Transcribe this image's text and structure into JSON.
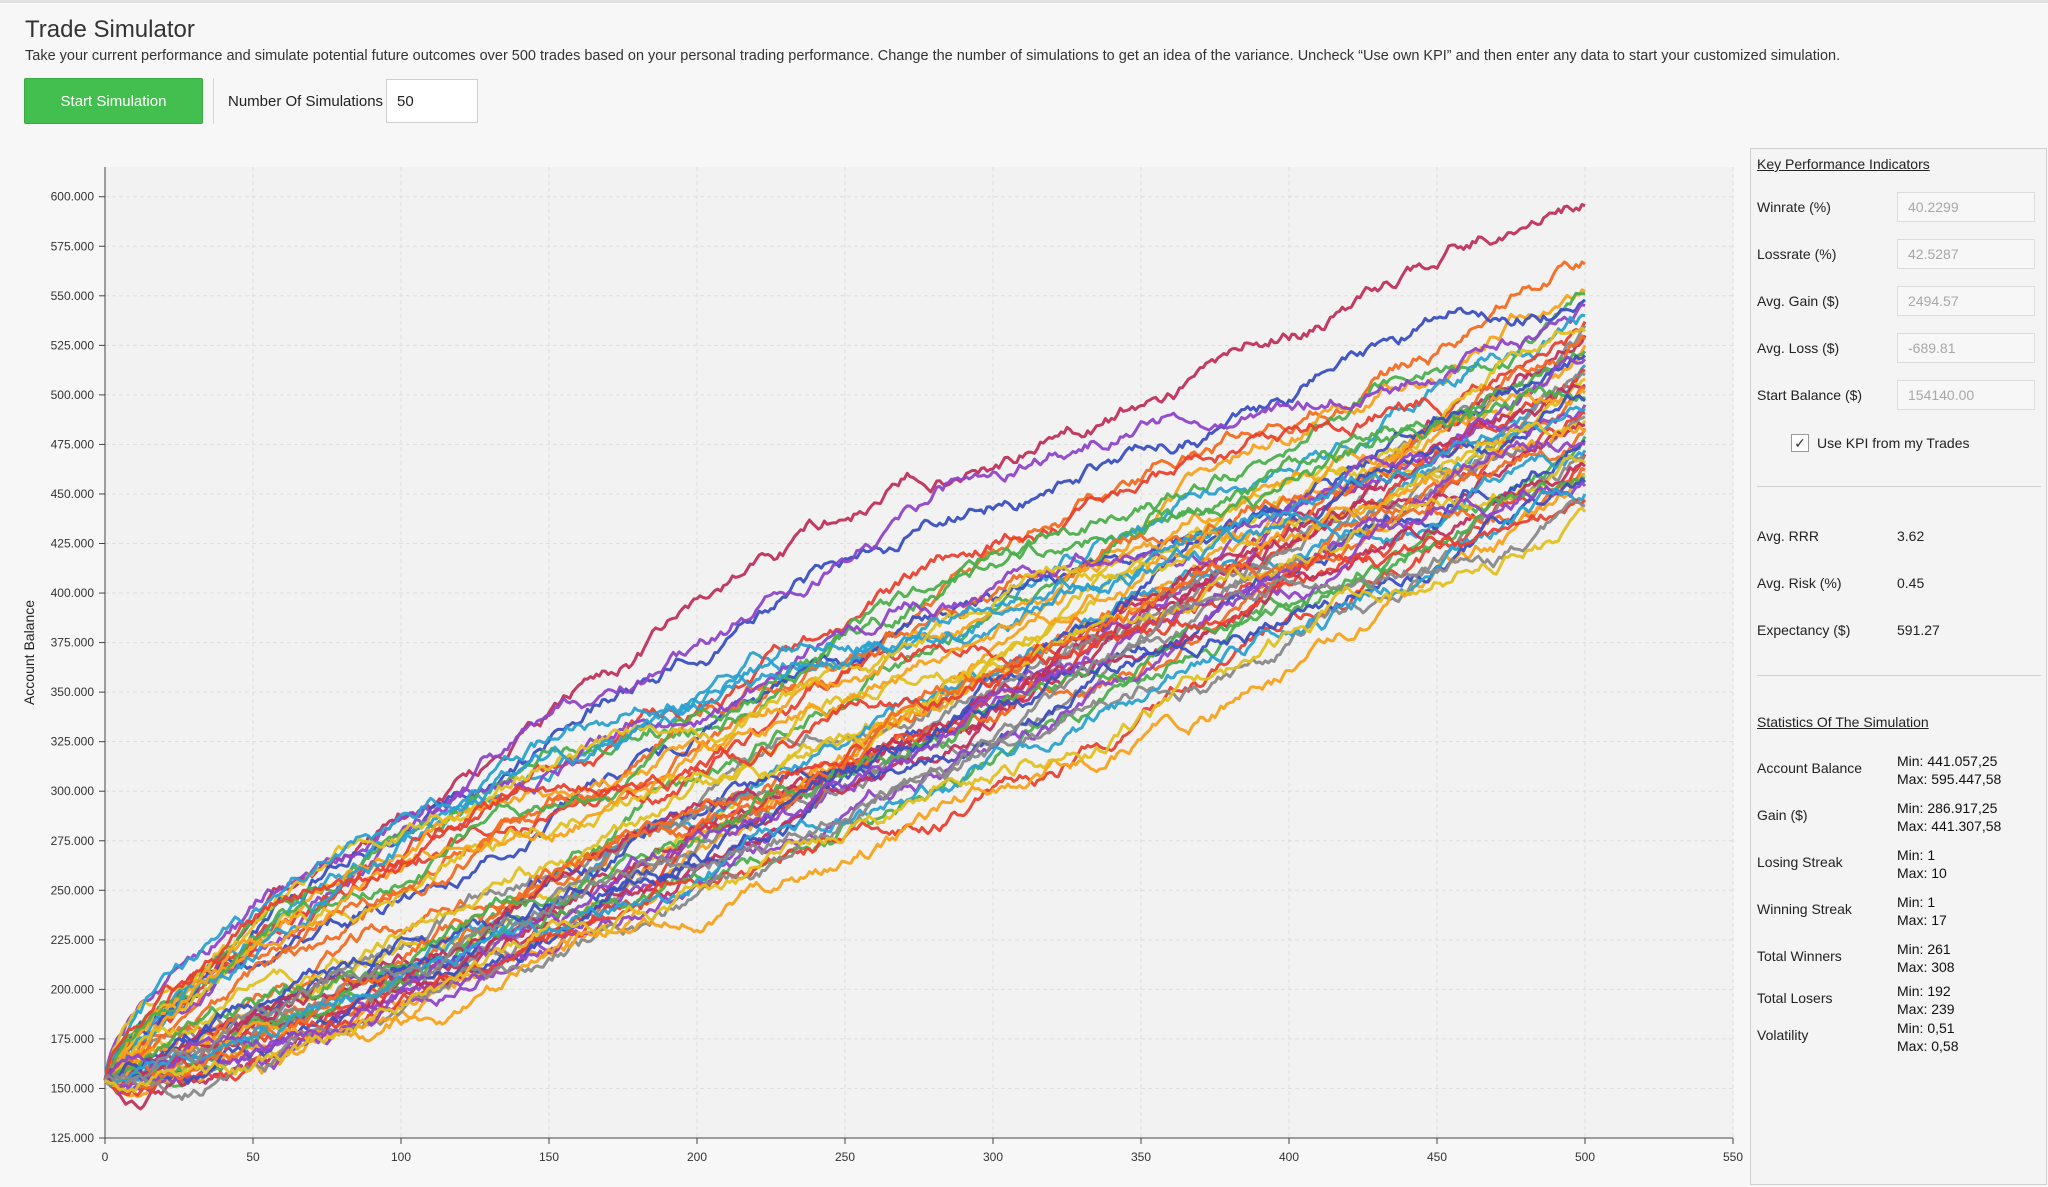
{
  "header": {
    "title": "Trade Simulator",
    "description": "Take your current performance and simulate potential future outcomes over 500 trades based on your personal trading performance. Change the number of simulations to get an idea of the variance. Uncheck “Use own KPI” and then enter any data to start your customized simulation."
  },
  "controls": {
    "start_button": "Start Simulation",
    "num_sim_label": "Number Of Simulations",
    "num_sim_value": "50"
  },
  "kpi": {
    "heading": "Key Performance Indicators",
    "winrate_label": "Winrate (%)",
    "winrate_value": "40.2299",
    "lossrate_label": "Lossrate (%)",
    "lossrate_value": "42.5287",
    "avg_gain_label": "Avg. Gain ($)",
    "avg_gain_value": "2494.57",
    "avg_loss_label": "Avg. Loss ($)",
    "avg_loss_value": "-689.81",
    "start_balance_label": "Start Balance ($)",
    "start_balance_value": "154140.00",
    "use_kpi_label": "Use KPI from my Trades",
    "use_kpi_checked": true
  },
  "derived": {
    "avg_rrr_label": "Avg. RRR",
    "avg_rrr_value": "3.62",
    "avg_risk_label": "Avg. Risk (%)",
    "avg_risk_value": "0.45",
    "expectancy_label": "Expectancy ($)",
    "expectancy_value": "591.27"
  },
  "stats": {
    "heading": "Statistics Of The Simulation",
    "account_balance": {
      "label": "Account Balance",
      "min": "Min: 441.057,25",
      "max": "Max: 595.447,58"
    },
    "gain": {
      "label": "Gain ($)",
      "min": "Min: 286.917,25",
      "max": "Max: 441.307,58"
    },
    "losing_streak": {
      "label": "Losing Streak",
      "min": "Min: 1",
      "max": "Max: 10"
    },
    "winning_streak": {
      "label": "Winning Streak",
      "min": "Min: 1",
      "max": "Max: 17"
    },
    "total_winners": {
      "label": "Total Winners",
      "min": "Min: 261",
      "max": "Max: 308"
    },
    "total_losers": {
      "label": "Total Losers",
      "min": "Min: 192",
      "max": "Max: 239"
    },
    "volatility": {
      "label": "Volatility",
      "min": "Min: 0,51",
      "max": "Max: 0,58"
    }
  },
  "colors": [
    "#c0305a",
    "#f26b21",
    "#f7a21b",
    "#4cae4c",
    "#3a4fc1",
    "#8e44c9",
    "#2aa0d0",
    "#e8402f",
    "#888888",
    "#e0c020"
  ],
  "chart_data": {
    "type": "line",
    "ylabel": "Account Balance",
    "xlabel": "",
    "xlim": [
      0,
      550
    ],
    "ylim": [
      125000,
      615000
    ],
    "x_ticks": [
      0,
      50,
      100,
      150,
      200,
      250,
      300,
      350,
      400,
      450,
      500,
      550
    ],
    "y_ticks": [
      125000,
      150000,
      175000,
      200000,
      225000,
      250000,
      275000,
      300000,
      325000,
      350000,
      375000,
      400000,
      425000,
      450000,
      475000,
      500000,
      525000,
      550000,
      575000,
      600000
    ],
    "y_tick_labels": [
      "125.000",
      "150.000",
      "175.000",
      "200.000",
      "225.000",
      "250.000",
      "275.000",
      "300.000",
      "325.000",
      "350.000",
      "375.000",
      "400.000",
      "425.000",
      "450.000",
      "475.000",
      "500.000",
      "525.000",
      "550.000",
      "575.000",
      "600.000"
    ],
    "grid": true,
    "num_series": 50,
    "trades_per_series": 500,
    "start_value": 154140,
    "final_values": [
      595447.58,
      566000,
      552000,
      551000,
      548000,
      545000,
      540000,
      537000,
      535000,
      532000,
      530000,
      528000,
      525000,
      522000,
      520000,
      518000,
      515000,
      512000,
      510000,
      508000,
      505000,
      503000,
      501000,
      499000,
      497000,
      495000,
      493000,
      491000,
      489000,
      487000,
      485000,
      483000,
      481000,
      479000,
      477000,
      475000,
      472000,
      470000,
      468000,
      466000,
      464000,
      462000,
      460000,
      458000,
      456000,
      454000,
      450000,
      447000,
      444000,
      441057.25
    ]
  }
}
